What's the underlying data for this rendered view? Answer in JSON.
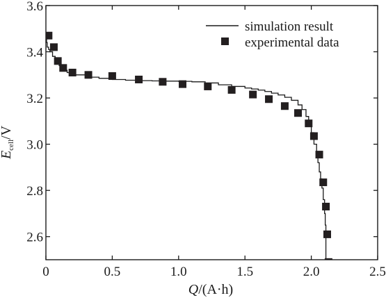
{
  "chart_data": {
    "type": "line",
    "xlabel": {
      "var": "Q",
      "unit": "/(A·h)"
    },
    "ylabel": {
      "var": "E",
      "sub": "cell",
      "unit": "/V"
    },
    "xlim": [
      0,
      2.5
    ],
    "ylim": [
      2.5,
      3.6
    ],
    "xticks": [
      0,
      0.5,
      1.0,
      1.5,
      2.0,
      2.5
    ],
    "xtick_labels": [
      "0",
      "0.5",
      "1.0",
      "1.5",
      "2.0",
      "2.5"
    ],
    "yticks": [
      2.6,
      2.8,
      3.0,
      3.2,
      3.4,
      3.6
    ],
    "ytick_labels": [
      "2.6",
      "2.8",
      "3.0",
      "3.2",
      "3.4",
      "3.6"
    ],
    "grid": false,
    "legend_position": "top-right",
    "series": [
      {
        "name": "simulation result",
        "kind": "line",
        "x": [
          0,
          0.005,
          0.01,
          0.02,
          0.03,
          0.05,
          0.07,
          0.1,
          0.13,
          0.16,
          0.2,
          0.3,
          0.4,
          0.5,
          0.6,
          0.7,
          0.8,
          0.9,
          1.0,
          1.1,
          1.2,
          1.3,
          1.4,
          1.5,
          1.55,
          1.6,
          1.65,
          1.7,
          1.75,
          1.8,
          1.85,
          1.9,
          1.93,
          1.96,
          1.98,
          2.0,
          2.02,
          2.04,
          2.05,
          2.06,
          2.07,
          2.08,
          2.09,
          2.1,
          2.105,
          2.11,
          2.11
        ],
        "y": [
          3.48,
          3.44,
          3.42,
          3.41,
          3.4,
          3.38,
          3.36,
          3.34,
          3.32,
          3.31,
          3.3,
          3.29,
          3.285,
          3.28,
          3.277,
          3.275,
          3.274,
          3.273,
          3.272,
          3.27,
          3.265,
          3.257,
          3.25,
          3.243,
          3.239,
          3.234,
          3.228,
          3.221,
          3.213,
          3.203,
          3.19,
          3.17,
          3.15,
          3.12,
          3.09,
          3.05,
          3.0,
          2.95,
          2.92,
          2.88,
          2.85,
          2.81,
          2.76,
          2.7,
          2.65,
          2.58,
          2.5
        ]
      },
      {
        "name": "experimental data",
        "kind": "scatter",
        "x": [
          0.02,
          0.06,
          0.09,
          0.13,
          0.2,
          0.32,
          0.5,
          0.7,
          0.88,
          1.03,
          1.22,
          1.4,
          1.56,
          1.68,
          1.8,
          1.9,
          1.98,
          2.02,
          2.06,
          2.09,
          2.11,
          2.12,
          2.13
        ],
        "y": [
          3.47,
          3.42,
          3.36,
          3.33,
          3.31,
          3.3,
          3.295,
          3.28,
          3.27,
          3.26,
          3.25,
          3.235,
          3.215,
          3.195,
          3.165,
          3.135,
          3.09,
          3.035,
          2.955,
          2.835,
          2.73,
          2.61,
          2.49
        ]
      }
    ],
    "colors": {
      "line": "#1a1a1a",
      "marker": "#231f20",
      "axis": "#1a1a1a"
    }
  }
}
